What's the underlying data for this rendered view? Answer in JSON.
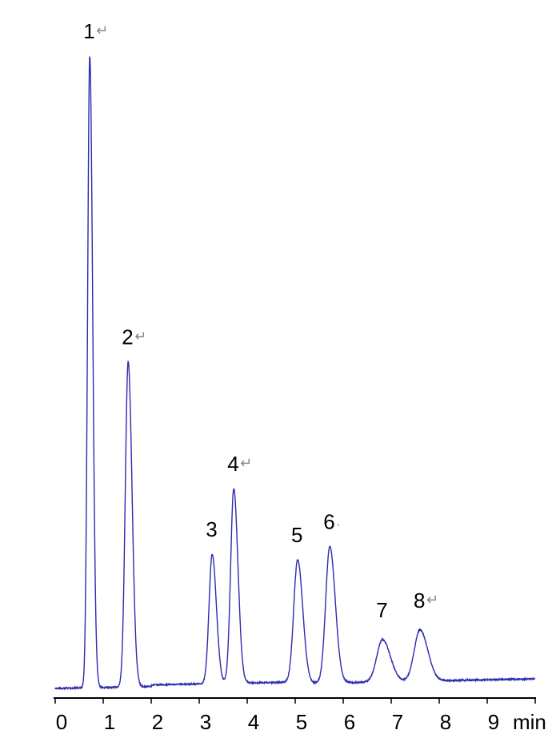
{
  "chart_data": {
    "type": "line",
    "title": "",
    "xlabel": "min",
    "ylabel": "",
    "xlim": [
      0,
      10
    ],
    "x_ticks": [
      "0",
      "1",
      "2",
      "3",
      "4",
      "5",
      "6",
      "7",
      "8",
      "9"
    ],
    "grid": false,
    "line_color": "#2b2bb0",
    "y_axis_shown": false,
    "intensity_units": "relative (peak 1 = 100)",
    "peaks": [
      {
        "label": "1",
        "retention_time": 0.72,
        "height": 100,
        "width": 0.045,
        "mark": "↵"
      },
      {
        "label": "2",
        "retention_time": 1.52,
        "height": 51.5,
        "width": 0.06,
        "mark": "↵"
      },
      {
        "label": "3",
        "retention_time": 3.27,
        "height": 20.5,
        "width": 0.065,
        "mark": ""
      },
      {
        "label": "4",
        "retention_time": 3.72,
        "height": 30.8,
        "width": 0.065,
        "mark": "↵"
      },
      {
        "label": "5",
        "retention_time": 5.05,
        "height": 19.6,
        "width": 0.08,
        "mark": ""
      },
      {
        "label": "6",
        "retention_time": 5.72,
        "height": 21.6,
        "width": 0.085,
        "mark": "."
      },
      {
        "label": "7",
        "retention_time": 6.82,
        "height": 6.7,
        "width": 0.12,
        "mark": ""
      },
      {
        "label": "8",
        "retention_time": 7.6,
        "height": 8.1,
        "width": 0.12,
        "mark": "↵"
      }
    ]
  }
}
